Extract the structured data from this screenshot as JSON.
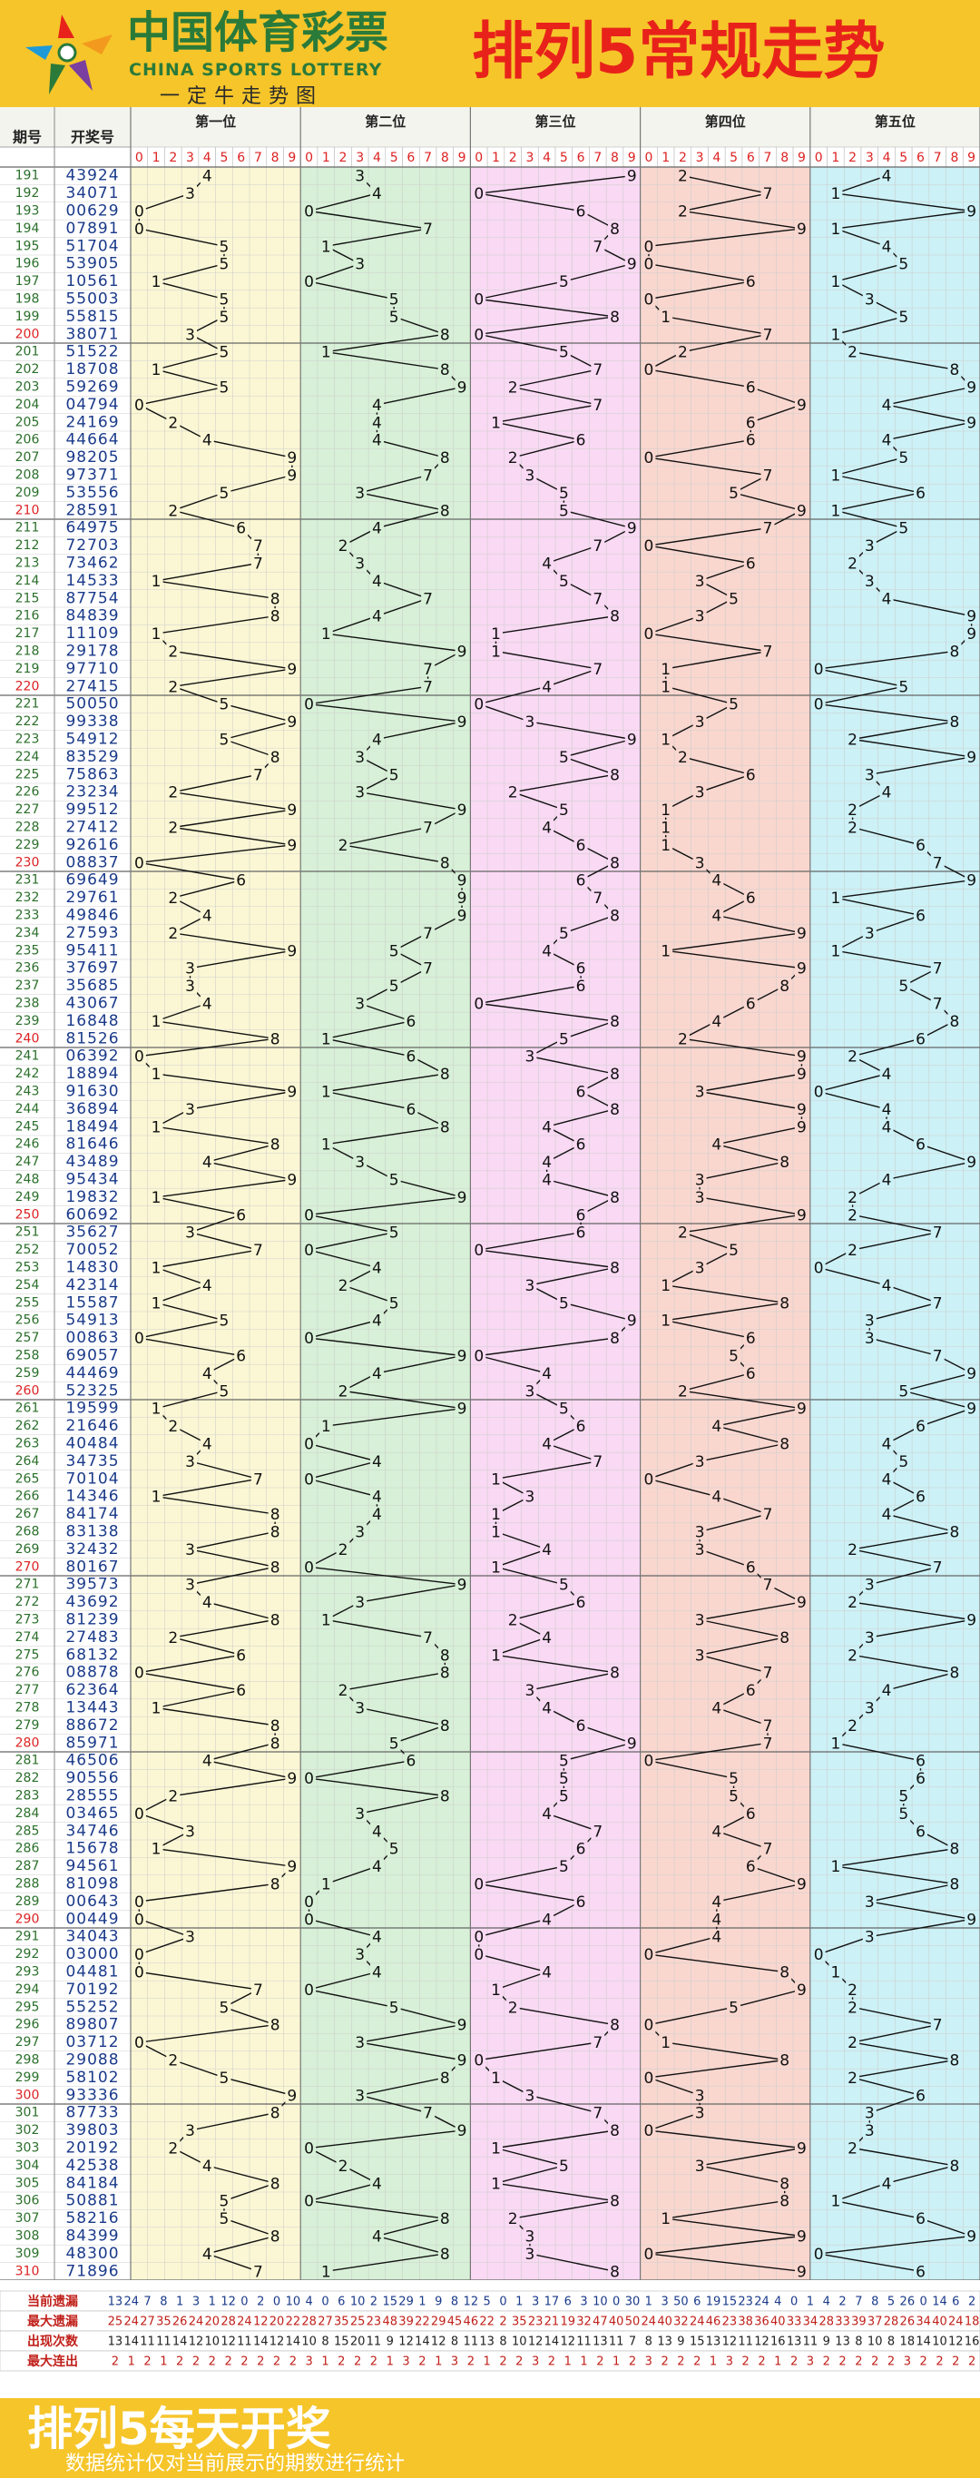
{
  "header": {
    "logo_cn": "中国体育彩票",
    "logo_en": "CHINA SPORTS LOTTERY",
    "slogan": "一定牛走势图",
    "title": "排列5常规走势"
  },
  "footer": {
    "title": "排列5每天开奖",
    "note": "数据统计仅对当前展示的期数进行统计"
  },
  "colors": {
    "zones": [
      "#fbf7d4",
      "#d7f0d7",
      "#f9d9f3",
      "#f9d7cf",
      "#ccf1f6"
    ],
    "header_bg": "#f6c52a",
    "title_red": "#e8221a",
    "logo_green": "#2a7a3a"
  },
  "chart_data": {
    "type": "table",
    "columns": {
      "issue": "期号",
      "draw": "开奖号",
      "positions": [
        "第一位",
        "第二位",
        "第三位",
        "第四位",
        "第五位"
      ],
      "digits": [
        "0",
        "1",
        "2",
        "3",
        "4",
        "5",
        "6",
        "7",
        "8",
        "9"
      ]
    },
    "issues": [
      "191",
      "192",
      "193",
      "194",
      "195",
      "196",
      "197",
      "198",
      "199",
      "200",
      "201",
      "202",
      "203",
      "204",
      "205",
      "206",
      "207",
      "208",
      "209",
      "210",
      "211",
      "212",
      "213",
      "214",
      "215",
      "216",
      "217",
      "218",
      "219",
      "220",
      "221",
      "222",
      "223",
      "224",
      "225",
      "226",
      "227",
      "228",
      "229",
      "230",
      "231",
      "232",
      "233",
      "234",
      "235",
      "236",
      "237",
      "238",
      "239",
      "240",
      "241",
      "242",
      "243",
      "244",
      "245",
      "246",
      "247",
      "248",
      "249",
      "250",
      "251",
      "252",
      "253",
      "254",
      "255",
      "256",
      "257",
      "258",
      "259",
      "260",
      "261",
      "262",
      "263",
      "264",
      "265",
      "266",
      "267",
      "268",
      "269",
      "270",
      "271",
      "272",
      "273",
      "274",
      "275",
      "276",
      "277",
      "278",
      "279",
      "280",
      "281",
      "282",
      "283",
      "284",
      "285",
      "286",
      "287",
      "288",
      "289",
      "290",
      "291",
      "292",
      "293",
      "294",
      "295",
      "296",
      "297",
      "298",
      "299",
      "300",
      "301",
      "302",
      "303",
      "304",
      "305",
      "306",
      "307",
      "308",
      "309",
      "310"
    ],
    "draws": [
      "43924",
      "34071",
      "00629",
      "07891",
      "51704",
      "53905",
      "10561",
      "55003",
      "55815",
      "38071",
      "51522",
      "18708",
      "59269",
      "04794",
      "24169",
      "44664",
      "98205",
      "97371",
      "53556",
      "28591",
      "64975",
      "72703",
      "73462",
      "14533",
      "87754",
      "84839",
      "11109",
      "29178",
      "97710",
      "27415",
      "50050",
      "99338",
      "54912",
      "83529",
      "75863",
      "23234",
      "99512",
      "27412",
      "92616",
      "08837",
      "69649",
      "29761",
      "49846",
      "27593",
      "95411",
      "37697",
      "35685",
      "43067",
      "16848",
      "81526",
      "06392",
      "18894",
      "91630",
      "36894",
      "18494",
      "81646",
      "43489",
      "95434",
      "19832",
      "60692",
      "35627",
      "70052",
      "14830",
      "42314",
      "15587",
      "54913",
      "00863",
      "69057",
      "44469",
      "52325",
      "19599",
      "21646",
      "40484",
      "34735",
      "70104",
      "14346",
      "84174",
      "83138",
      "32432",
      "80167",
      "39573",
      "43692",
      "81239",
      "27483",
      "68132",
      "08878",
      "62364",
      "13443",
      "88672",
      "85971",
      "46506",
      "90556",
      "28555",
      "03465",
      "34746",
      "15678",
      "94561",
      "81098",
      "00643",
      "00449",
      "34043",
      "03000",
      "04481",
      "70192",
      "55252",
      "89807",
      "03712",
      "29088",
      "58102",
      "93336",
      "87733",
      "39803",
      "20192",
      "42538",
      "84184",
      "50881",
      "58216",
      "84399",
      "48300",
      "71896"
    ],
    "stat_labels": [
      "当前遗漏",
      "最大遗漏",
      "出现次数",
      "最大连出"
    ],
    "stat_rows": [
      [
        "13",
        "24",
        "7",
        "8",
        "1",
        "3",
        "1",
        "12",
        "0",
        "2",
        "0",
        "10",
        "4",
        "0",
        "6",
        "10",
        "2",
        "15",
        "29",
        "1",
        "9",
        "8",
        "12",
        "5",
        "0",
        "1",
        "3",
        "17",
        "6",
        "3",
        "10",
        "0",
        "30",
        "1",
        "3",
        "50",
        "6",
        "19",
        "15",
        "23",
        "24",
        "4",
        "0",
        "1",
        "4",
        "2",
        "7",
        "8",
        "5",
        "26",
        "0",
        "14",
        "6",
        "2"
      ],
      [
        "25",
        "24",
        "27",
        "35",
        "26",
        "24",
        "20",
        "28",
        "24",
        "12",
        "20",
        "22",
        "28",
        "27",
        "35",
        "25",
        "23",
        "48",
        "39",
        "22",
        "29",
        "45",
        "46",
        "22",
        "2",
        "35",
        "23",
        "21",
        "19",
        "32",
        "47",
        "40",
        "50",
        "24",
        "40",
        "32",
        "24",
        "46",
        "23",
        "38",
        "36",
        "40",
        "33",
        "34",
        "28",
        "33",
        "39",
        "37",
        "28",
        "26",
        "34",
        "40",
        "24",
        "18"
      ],
      [
        "13",
        "14",
        "11",
        "11",
        "14",
        "12",
        "10",
        "12",
        "11",
        "14",
        "12",
        "14",
        "10",
        "8",
        "15",
        "20",
        "11",
        "9",
        "12",
        "14",
        "12",
        "8",
        "11",
        "13",
        "8",
        "10",
        "12",
        "14",
        "12",
        "11",
        "13",
        "11",
        "7",
        "8",
        "13",
        "9",
        "15",
        "13",
        "12",
        "11",
        "12",
        "16",
        "13",
        "11",
        "9",
        "13",
        "8",
        "10",
        "8",
        "18",
        "14",
        "10",
        "12",
        "16"
      ],
      [
        "2",
        "1",
        "2",
        "1",
        "2",
        "2",
        "2",
        "2",
        "2",
        "2",
        "2",
        "2",
        "3",
        "1",
        "2",
        "2",
        "2",
        "1",
        "3",
        "2",
        "1",
        "3",
        "2",
        "1",
        "2",
        "2",
        "3",
        "2",
        "1",
        "1",
        "2",
        "1",
        "2",
        "3",
        "2",
        "2",
        "2",
        "1",
        "3",
        "2",
        "2",
        "1",
        "2",
        "3",
        "2",
        "2",
        "2",
        "2",
        "2",
        "3",
        "2",
        "2",
        "2",
        "2"
      ]
    ]
  }
}
